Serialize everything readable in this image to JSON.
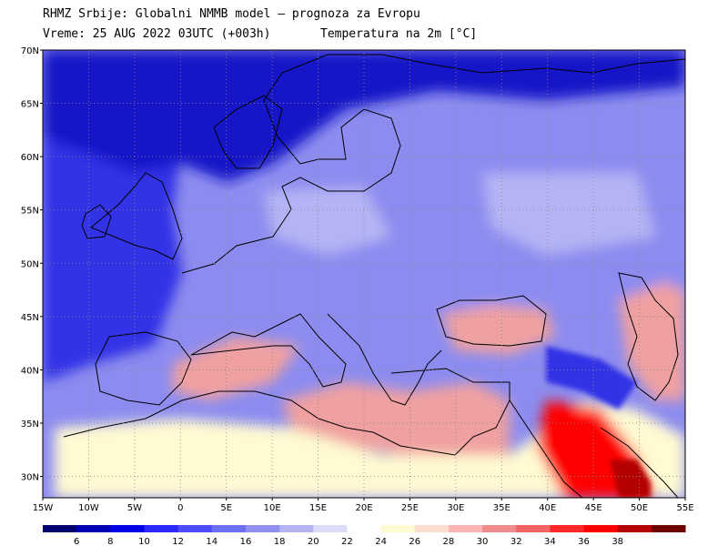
{
  "header": {
    "line1": "RHMZ Srbije: Globalni NMMB model — prognoza za Evropu",
    "line2": "Vreme: 25 AUG 2022 03UTC (+003h)",
    "line3": "Temperatura na 2m [°C]"
  },
  "axes": {
    "lat_labels": [
      "70N",
      "65N",
      "60N",
      "55N",
      "50N",
      "45N",
      "40N",
      "35N",
      "30N"
    ],
    "lat_values": [
      70,
      65,
      60,
      55,
      50,
      45,
      40,
      35,
      30
    ],
    "lon_labels": [
      "15W",
      "10W",
      "5W",
      "0",
      "5E",
      "10E",
      "15E",
      "20E",
      "25E",
      "30E",
      "35E",
      "40E",
      "45E",
      "50E",
      "55E"
    ],
    "lon_values": [
      -15,
      -10,
      -5,
      0,
      5,
      10,
      15,
      20,
      25,
      30,
      35,
      40,
      45,
      50,
      55
    ],
    "lon_range": [
      -15,
      55
    ],
    "lat_range": [
      28,
      70
    ]
  },
  "colorbar": {
    "labels": [
      "6",
      "8",
      "10",
      "12",
      "14",
      "16",
      "18",
      "20",
      "22",
      "24",
      "26",
      "28",
      "30",
      "32",
      "34",
      "36",
      "38"
    ],
    "colors": [
      "#00006e",
      "#0000b4",
      "#0000e6",
      "#2a2aff",
      "#4d4dff",
      "#6e6ef2",
      "#9090f0",
      "#b4b4f5",
      "#dcdcfa",
      "#ffffff",
      "#fffad2",
      "#ffdcd2",
      "#ffb4b4",
      "#f08c8c",
      "#f06464",
      "#ff2828",
      "#ff0000",
      "#b40000",
      "#6e0000"
    ]
  },
  "map": {
    "colors": {
      "ocean_cold": "#3232e6",
      "north_deep": "#1414c8",
      "land_mild": "#8c8cf0",
      "land_light": "#b4b4f5",
      "sea_warm": "#f0a0a0",
      "desert": "#fffad2",
      "hot": "#ff0000",
      "very_hot": "#b40000",
      "border": "#000000",
      "grid": "#888888"
    }
  }
}
